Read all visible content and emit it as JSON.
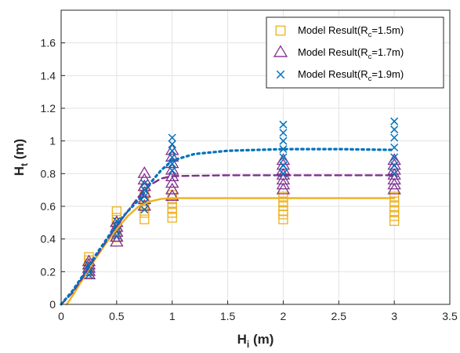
{
  "chart_data": {
    "type": "scatter",
    "xlabel": {
      "main": "H",
      "sub": "i",
      "unit": " (m)"
    },
    "ylabel": {
      "main": "H",
      "sub": "t",
      "unit": " (m)"
    },
    "xlim": [
      0,
      3.5
    ],
    "ylim": [
      0,
      1.8
    ],
    "xticks": [
      0,
      0.5,
      1,
      1.5,
      2,
      2.5,
      3,
      3.5
    ],
    "xtick_labels": [
      "0",
      "0.5",
      "1",
      "1.5",
      "2",
      "2.5",
      "3",
      "3.5"
    ],
    "yticks": [
      0,
      0.2,
      0.4,
      0.6,
      0.8,
      1,
      1.2,
      1.4,
      1.6
    ],
    "ytick_labels": [
      "0",
      "0.2",
      "0.4",
      "0.6",
      "0.8",
      "1",
      "1.2",
      "1.4",
      "1.6"
    ],
    "grid": true,
    "legend_position": "top-right",
    "series": [
      {
        "name": {
          "pre": "Model Result(R",
          "sub": "c",
          "post": "=1.5m)"
        },
        "marker": "square",
        "color": "#EDB120",
        "line_style": "solid",
        "points": [
          [
            0.25,
            0.19
          ],
          [
            0.25,
            0.21
          ],
          [
            0.25,
            0.23
          ],
          [
            0.25,
            0.25
          ],
          [
            0.25,
            0.27
          ],
          [
            0.25,
            0.29
          ],
          [
            0.5,
            0.41
          ],
          [
            0.5,
            0.44
          ],
          [
            0.5,
            0.47
          ],
          [
            0.5,
            0.5
          ],
          [
            0.5,
            0.53
          ],
          [
            0.5,
            0.57
          ],
          [
            0.75,
            0.52
          ],
          [
            0.75,
            0.56
          ],
          [
            0.75,
            0.6
          ],
          [
            0.75,
            0.63
          ],
          [
            0.75,
            0.66
          ],
          [
            0.75,
            0.69
          ],
          [
            1,
            0.53
          ],
          [
            1,
            0.56
          ],
          [
            1,
            0.59
          ],
          [
            1,
            0.62
          ],
          [
            1,
            0.65
          ],
          [
            1,
            0.67
          ],
          [
            2,
            0.52
          ],
          [
            2,
            0.55
          ],
          [
            2,
            0.57
          ],
          [
            2,
            0.6
          ],
          [
            2,
            0.63
          ],
          [
            2,
            0.66
          ],
          [
            3,
            0.51
          ],
          [
            3,
            0.54
          ],
          [
            3,
            0.57
          ],
          [
            3,
            0.6
          ],
          [
            3,
            0.63
          ],
          [
            3,
            0.66
          ]
        ],
        "fit_curve": [
          [
            0.05,
            0.0
          ],
          [
            0.1,
            0.05
          ],
          [
            0.2,
            0.16
          ],
          [
            0.3,
            0.27
          ],
          [
            0.4,
            0.37
          ],
          [
            0.5,
            0.46
          ],
          [
            0.6,
            0.54
          ],
          [
            0.7,
            0.6
          ],
          [
            0.8,
            0.63
          ],
          [
            0.9,
            0.645
          ],
          [
            1,
            0.65
          ],
          [
            1.5,
            0.65
          ],
          [
            2,
            0.65
          ],
          [
            2.5,
            0.65
          ],
          [
            3,
            0.65
          ]
        ]
      },
      {
        "name": {
          "pre": "Model Result(R",
          "sub": "c",
          "post": "=1.7m)"
        },
        "marker": "triangle",
        "color": "#7E2F8E",
        "line_style": "dashed",
        "points": [
          [
            0.25,
            0.18
          ],
          [
            0.25,
            0.2
          ],
          [
            0.25,
            0.22
          ],
          [
            0.25,
            0.24
          ],
          [
            0.25,
            0.26
          ],
          [
            0.5,
            0.38
          ],
          [
            0.5,
            0.41
          ],
          [
            0.5,
            0.44
          ],
          [
            0.5,
            0.47
          ],
          [
            0.5,
            0.5
          ],
          [
            0.75,
            0.6
          ],
          [
            0.75,
            0.64
          ],
          [
            0.75,
            0.68
          ],
          [
            0.75,
            0.72
          ],
          [
            0.75,
            0.76
          ],
          [
            0.75,
            0.8
          ],
          [
            1,
            0.66
          ],
          [
            1,
            0.7
          ],
          [
            1,
            0.74
          ],
          [
            1,
            0.78
          ],
          [
            1,
            0.82
          ],
          [
            1,
            0.86
          ],
          [
            1,
            0.9
          ],
          [
            1,
            0.94
          ],
          [
            2,
            0.7
          ],
          [
            2,
            0.73
          ],
          [
            2,
            0.76
          ],
          [
            2,
            0.79
          ],
          [
            2,
            0.82
          ],
          [
            2,
            0.85
          ],
          [
            2,
            0.88
          ],
          [
            3,
            0.7
          ],
          [
            3,
            0.73
          ],
          [
            3,
            0.76
          ],
          [
            3,
            0.79
          ],
          [
            3,
            0.82
          ],
          [
            3,
            0.85
          ],
          [
            3,
            0.88
          ]
        ],
        "fit_curve": [
          [
            0,
            0.0
          ],
          [
            0.1,
            0.07
          ],
          [
            0.2,
            0.17
          ],
          [
            0.3,
            0.28
          ],
          [
            0.4,
            0.38
          ],
          [
            0.5,
            0.48
          ],
          [
            0.6,
            0.57
          ],
          [
            0.7,
            0.66
          ],
          [
            0.8,
            0.73
          ],
          [
            0.9,
            0.77
          ],
          [
            1,
            0.785
          ],
          [
            1.5,
            0.79
          ],
          [
            2,
            0.79
          ],
          [
            2.5,
            0.79
          ],
          [
            3,
            0.79
          ]
        ]
      },
      {
        "name": {
          "pre": "Model Result(R",
          "sub": "c",
          "post": "=1.9m)"
        },
        "marker": "x",
        "color": "#0072BD",
        "line_style": "dotted",
        "points": [
          [
            0.25,
            0.18
          ],
          [
            0.25,
            0.2
          ],
          [
            0.25,
            0.22
          ],
          [
            0.25,
            0.24
          ],
          [
            0.5,
            0.42
          ],
          [
            0.5,
            0.45
          ],
          [
            0.5,
            0.48
          ],
          [
            0.5,
            0.51
          ],
          [
            0.75,
            0.58
          ],
          [
            0.75,
            0.62
          ],
          [
            0.75,
            0.66
          ],
          [
            0.75,
            0.7
          ],
          [
            0.75,
            0.74
          ],
          [
            1,
            0.82
          ],
          [
            1,
            0.86
          ],
          [
            1,
            0.9
          ],
          [
            1,
            0.94
          ],
          [
            1,
            0.98
          ],
          [
            1,
            1.02
          ],
          [
            2,
            0.8
          ],
          [
            2,
            0.85
          ],
          [
            2,
            0.9
          ],
          [
            2,
            0.95
          ],
          [
            2,
            1.0
          ],
          [
            2,
            1.05
          ],
          [
            2,
            1.1
          ],
          [
            3,
            0.8
          ],
          [
            3,
            0.85
          ],
          [
            3,
            0.9
          ],
          [
            3,
            0.96
          ],
          [
            3,
            1.02
          ],
          [
            3,
            1.07
          ],
          [
            3,
            1.12
          ]
        ],
        "fit_curve": [
          [
            0,
            0.0
          ],
          [
            0.1,
            0.08
          ],
          [
            0.2,
            0.18
          ],
          [
            0.3,
            0.29
          ],
          [
            0.4,
            0.39
          ],
          [
            0.5,
            0.49
          ],
          [
            0.6,
            0.57
          ],
          [
            0.7,
            0.64
          ],
          [
            0.8,
            0.74
          ],
          [
            0.9,
            0.82
          ],
          [
            1,
            0.88
          ],
          [
            1.2,
            0.92
          ],
          [
            1.5,
            0.94
          ],
          [
            2,
            0.95
          ],
          [
            2.5,
            0.95
          ],
          [
            3,
            0.945
          ]
        ]
      }
    ]
  }
}
